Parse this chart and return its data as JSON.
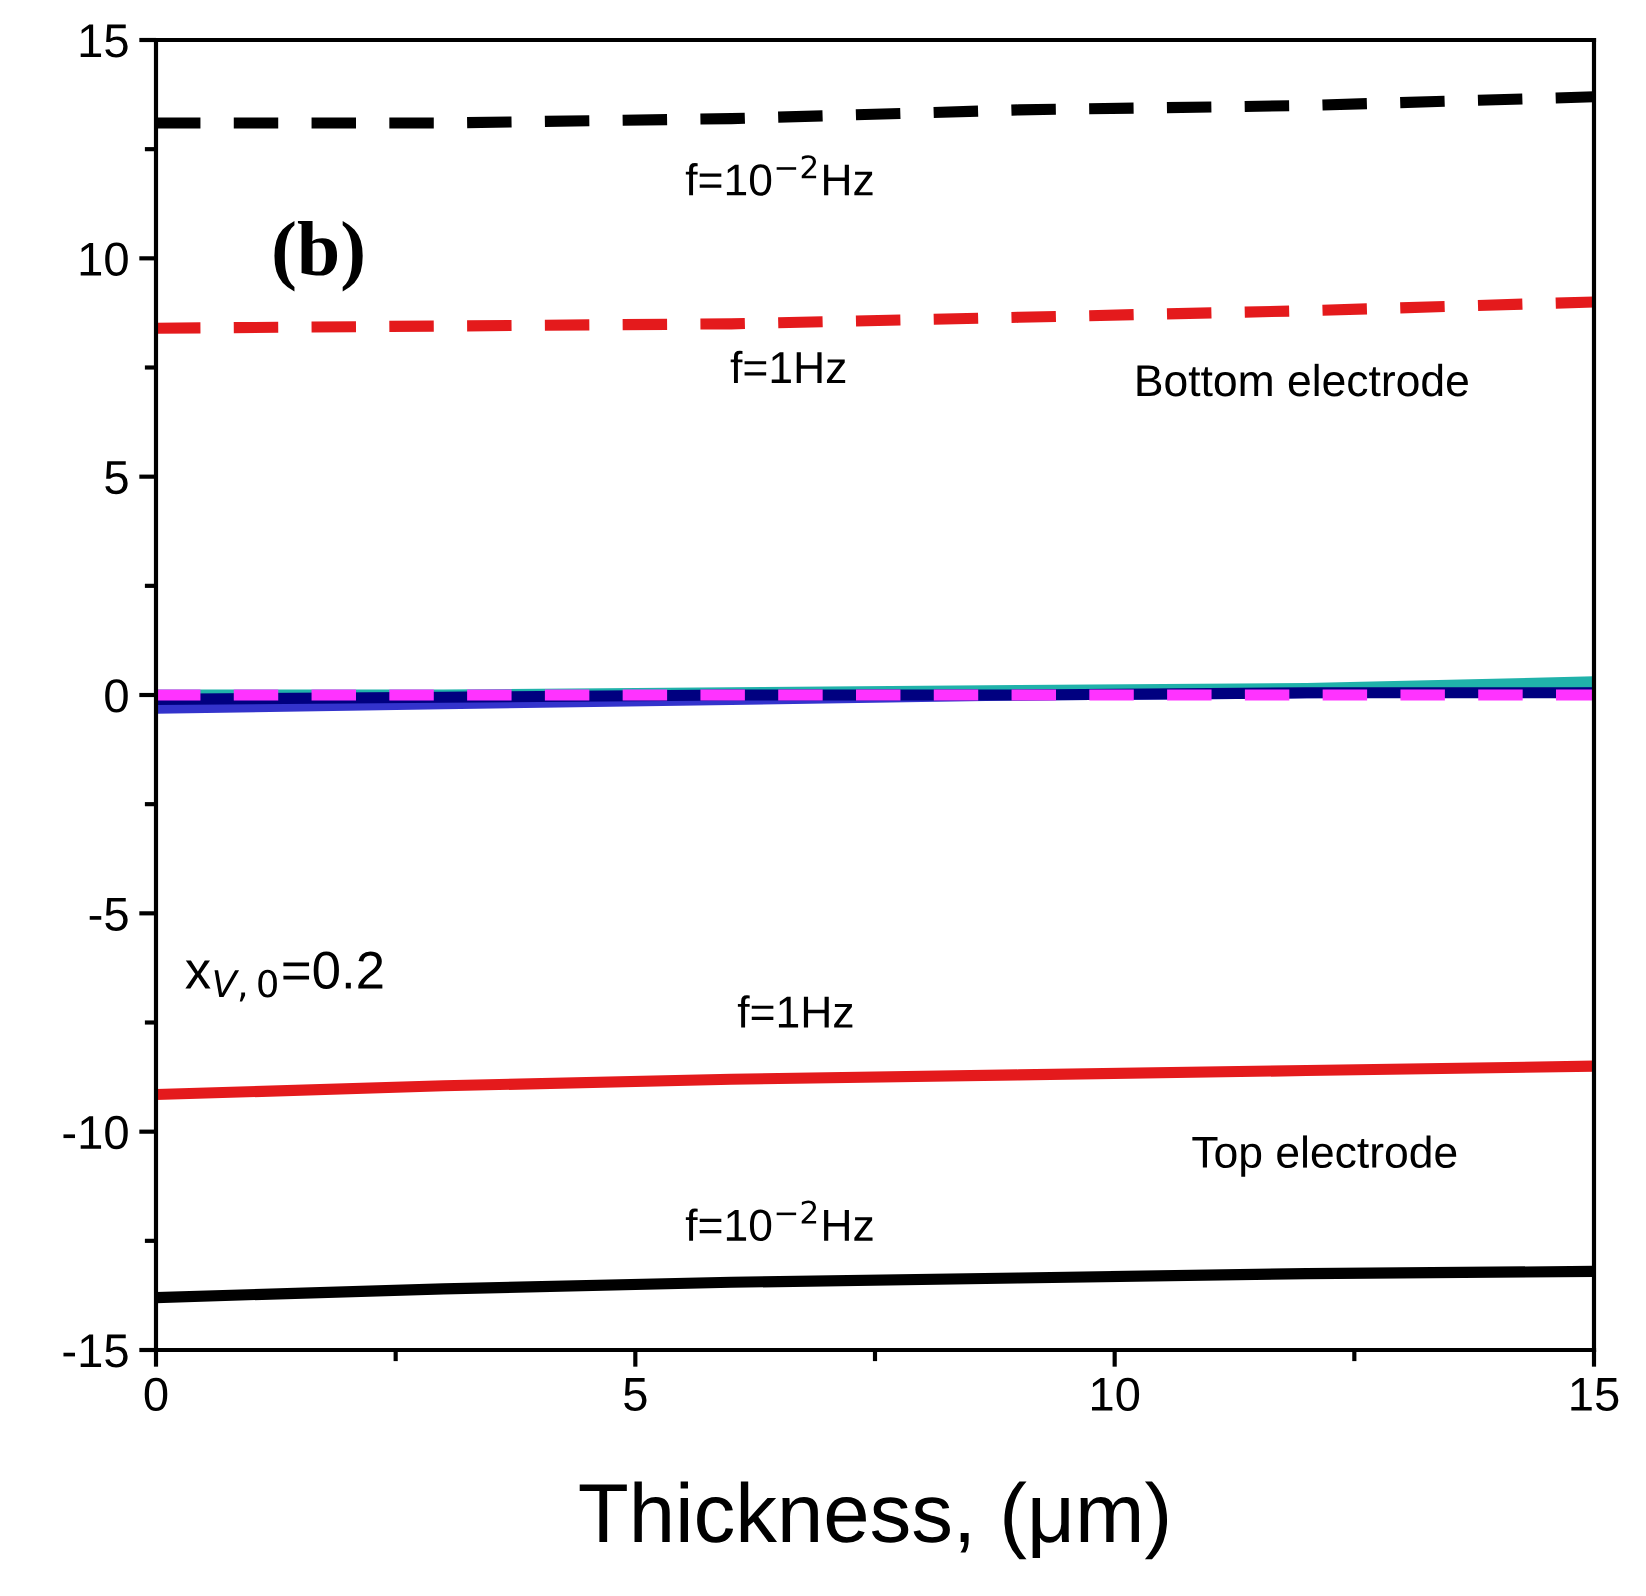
{
  "chart_data": {
    "type": "line",
    "xlabel": "Thickness, (μm)",
    "xlim": [
      0,
      15
    ],
    "ylim": [
      -15,
      15
    ],
    "xticks": [
      0,
      {
        "value": 2.5,
        "label": null
      },
      5,
      {
        "value": 7.5,
        "label": null
      },
      10,
      {
        "value": 12.5,
        "label": null
      },
      15
    ],
    "yticks": [
      -15,
      {
        "value": -12.5,
        "label": null
      },
      -10,
      {
        "value": -7.5,
        "label": null
      },
      -5,
      {
        "value": -2.5,
        "label": null
      },
      0,
      {
        "value": 2.5,
        "label": null
      },
      5,
      {
        "value": 7.5,
        "label": null
      },
      10,
      {
        "value": 12.5,
        "label": null
      },
      15
    ],
    "grid": false,
    "legend": false,
    "marker": "none",
    "x": [
      0,
      3,
      6,
      9,
      12,
      15
    ],
    "series": [
      {
        "color": "#000000",
        "line_style": "dashed",
        "values": [
          13.1,
          13.1,
          13.2,
          13.4,
          13.5,
          13.7
        ]
      },
      {
        "color": "#e41a1c",
        "line_style": "dashed",
        "values": [
          8.4,
          8.45,
          8.5,
          8.65,
          8.8,
          9.0
        ]
      },
      {
        "color": "#3333cc",
        "line_style": "solid",
        "values": [
          -0.3,
          -0.2,
          -0.1,
          0.0,
          0.05,
          0.1
        ]
      },
      {
        "color": "#20b2aa",
        "line_style": "solid",
        "values": [
          0.0,
          0.0,
          0.05,
          0.1,
          0.15,
          0.3
        ]
      },
      {
        "color": "#000080",
        "line_style": "solid",
        "values": [
          -0.1,
          -0.05,
          0.0,
          0.0,
          0.05,
          0.05
        ]
      },
      {
        "color": "#ff33ff",
        "line_style": "dashed",
        "values": [
          0.0,
          0.0,
          0.0,
          0.0,
          0.0,
          0.0
        ]
      },
      {
        "color": "#e41a1c",
        "line_style": "solid",
        "values": [
          -9.15,
          -8.95,
          -8.8,
          -8.7,
          -8.6,
          -8.5
        ]
      },
      {
        "color": "#000000",
        "line_style": "solid",
        "values": [
          -13.8,
          -13.6,
          -13.45,
          -13.35,
          -13.25,
          -13.2
        ]
      }
    ],
    "annotations": [
      "f=10$^{−2}$Hz",
      "f=1Hz",
      "Bottom electrode",
      "(b)",
      "x$_{V,0}$=0.2",
      "f=1Hz",
      "Top electrode",
      "f=10$^{−2}$Hz"
    ]
  }
}
